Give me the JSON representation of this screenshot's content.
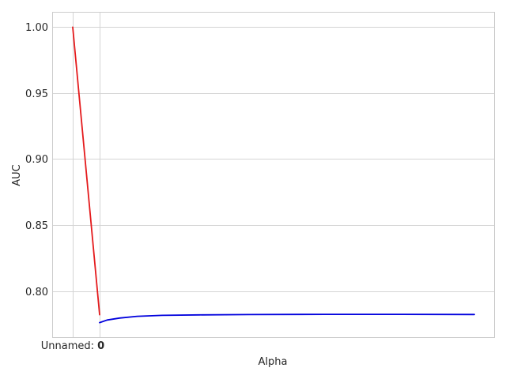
{
  "chart_data": {
    "type": "line",
    "xlabel": "Alpha",
    "ylabel": "AUC",
    "ylim": [
      0.765,
      1.011
    ],
    "grid": true,
    "x_tick_label": {
      "prefix": "Unnamed: ",
      "value": "0"
    },
    "y_ticks": [
      0.8,
      0.85,
      0.9,
      0.95,
      1.0
    ],
    "y_tick_labels": [
      "0.80",
      "0.85",
      "0.90",
      "0.95",
      "1.00"
    ],
    "series": [
      {
        "color": "#e41a1c",
        "x": [
          0,
          1
        ],
        "y": [
          1.0,
          0.782
        ]
      },
      {
        "color": "#0000dd",
        "x": [
          1,
          1.3,
          1.8,
          2.5,
          3.5,
          5,
          7,
          10,
          13,
          16
        ],
        "y": [
          0.776,
          0.778,
          0.7795,
          0.7808,
          0.7815,
          0.7819,
          0.7821,
          0.7823,
          0.7823,
          0.7822
        ]
      }
    ]
  }
}
